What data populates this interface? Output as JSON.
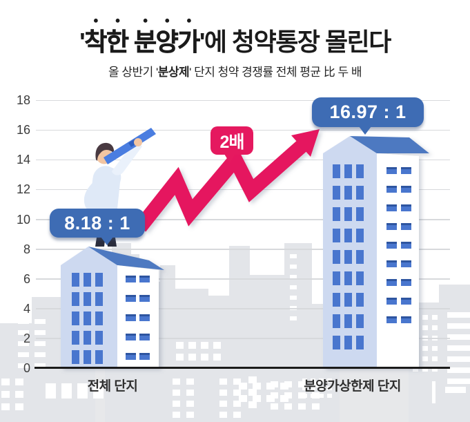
{
  "header": {
    "title": {
      "quote_open": "'",
      "emphasis": "착한 분양가",
      "rest": "'에 청약통장 몰린다"
    },
    "subtitle": {
      "pre": "올 상반기 '",
      "emphasis": "분상제",
      "post": "' 단지 청약 경쟁률 전체 평균 比 두 배"
    }
  },
  "chart": {
    "yticks": [
      18,
      16,
      14,
      12,
      10,
      8,
      6,
      4,
      2,
      0
    ],
    "bars": [
      {
        "category": "전체 단지",
        "value": 8.18,
        "value_label": "8.18 : 1"
      },
      {
        "category": "분양가상한제 단지",
        "value": 16.97,
        "value_label": "16.97 : 1"
      }
    ],
    "annotation": "2배"
  },
  "colors": {
    "accent_pink": "#e5195f",
    "badge_blue": "#3e6cb4",
    "roof_blue": "#4d79c1",
    "side_face": "#cdd9f0",
    "window_blue": "#4a76ce",
    "window_dark": "#2f54a0",
    "skyline_gray": "#e3e5e9",
    "band_gray": "#e7e8ea",
    "grid_gray": "#d7d9dc",
    "baseline_black": "#1a1a1a",
    "title_black": "#1b1b1b"
  },
  "chart_data": {
    "type": "bar",
    "title": "'착한 분양가'에 청약통장 몰린다",
    "subtitle": "올 상반기 '분상제' 단지 청약 경쟁률 전체 평균 比 두 배",
    "categories": [
      "전체 단지",
      "분양가상한제 단지"
    ],
    "values": [
      8.18,
      16.97
    ],
    "value_labels": [
      "8.18 : 1",
      "16.97 : 1"
    ],
    "annotation": "2배",
    "xlabel": "",
    "ylabel": "",
    "ylim": [
      0,
      18
    ],
    "ytick_step": 2,
    "grid": true,
    "legend": "none",
    "style": "pictorial-buildings-infographic"
  }
}
